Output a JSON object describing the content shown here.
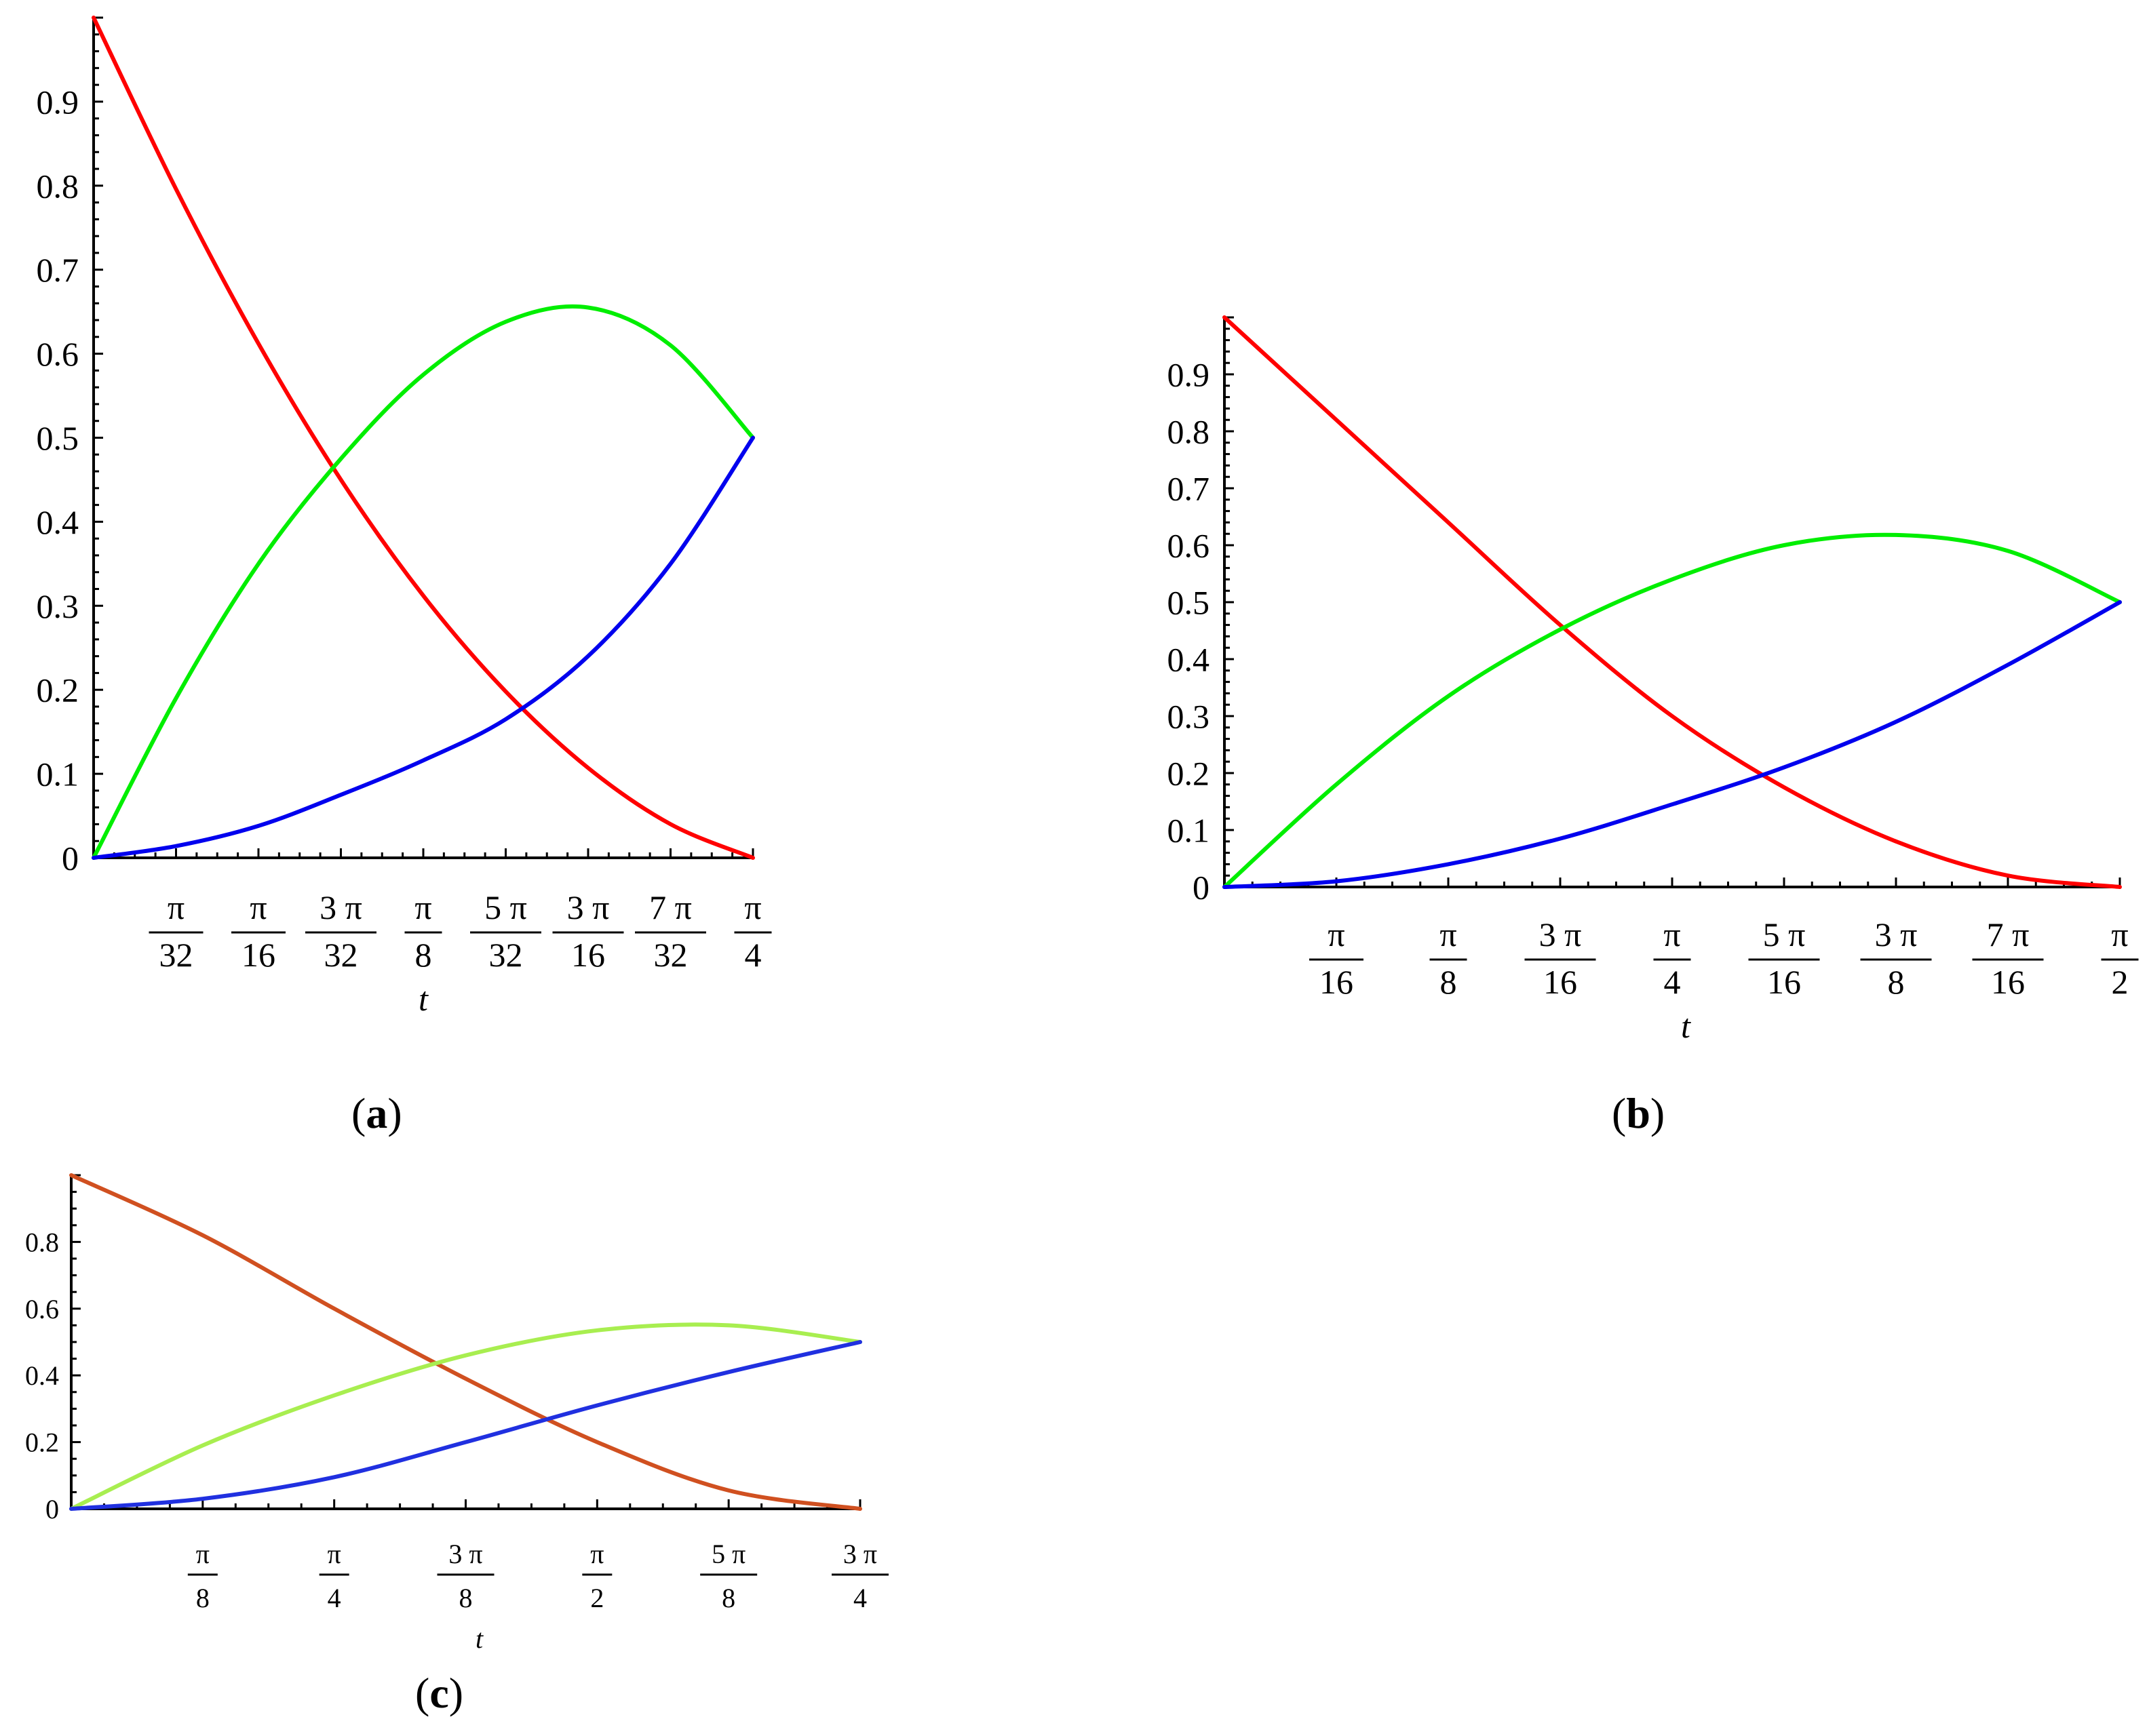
{
  "chart_data": [
    {
      "type": "line",
      "panel_label": "a",
      "xlabel": "t",
      "ylim": [
        0,
        1
      ],
      "xlim_pi": [
        0,
        0.25
      ],
      "y_ticks": [
        "0",
        "0.1",
        "0.2",
        "0.3",
        "0.4",
        "0.5",
        "0.6",
        "0.7",
        "0.8",
        "0.9"
      ],
      "y_tick_values": [
        0,
        0.1,
        0.2,
        0.3,
        0.4,
        0.5,
        0.6,
        0.7,
        0.8,
        0.9
      ],
      "x_ticks": [
        {
          "num": "π",
          "den": "32",
          "value_pi": 0.03125
        },
        {
          "num": "π",
          "den": "16",
          "value_pi": 0.0625
        },
        {
          "num": "3 π",
          "den": "32",
          "value_pi": 0.09375
        },
        {
          "num": "π",
          "den": "8",
          "value_pi": 0.125
        },
        {
          "num": "5 π",
          "den": "32",
          "value_pi": 0.15625
        },
        {
          "num": "3 π",
          "den": "16",
          "value_pi": 0.1875
        },
        {
          "num": "7 π",
          "den": "32",
          "value_pi": 0.21875
        },
        {
          "num": "π",
          "den": "4",
          "value_pi": 0.25
        }
      ],
      "x_pi": [
        0,
        0.03125,
        0.0625,
        0.09375,
        0.125,
        0.15625,
        0.1875,
        0.21875,
        0.25
      ],
      "series": [
        {
          "color": "#ff0000",
          "values": [
            1.0,
            0.796,
            0.612,
            0.45,
            0.312,
            0.198,
            0.107,
            0.04,
            0.0
          ]
        },
        {
          "color": "#00ee00",
          "values": [
            0.0,
            0.19,
            0.35,
            0.475,
            0.575,
            0.638,
            0.655,
            0.61,
            0.5
          ]
        },
        {
          "color": "#0000ee",
          "values": [
            0.0,
            0.014,
            0.038,
            0.075,
            0.116,
            0.165,
            0.24,
            0.35,
            0.5
          ]
        }
      ]
    },
    {
      "type": "line",
      "panel_label": "b",
      "xlabel": "t",
      "ylim": [
        0,
        1
      ],
      "xlim_pi": [
        0,
        0.5
      ],
      "y_ticks": [
        "0",
        "0.1",
        "0.2",
        "0.3",
        "0.4",
        "0.5",
        "0.6",
        "0.7",
        "0.8",
        "0.9"
      ],
      "y_tick_values": [
        0,
        0.1,
        0.2,
        0.3,
        0.4,
        0.5,
        0.6,
        0.7,
        0.8,
        0.9
      ],
      "x_ticks": [
        {
          "num": "π",
          "den": "16",
          "value_pi": 0.0625
        },
        {
          "num": "π",
          "den": "8",
          "value_pi": 0.125
        },
        {
          "num": "3 π",
          "den": "16",
          "value_pi": 0.1875
        },
        {
          "num": "π",
          "den": "4",
          "value_pi": 0.25
        },
        {
          "num": "5 π",
          "den": "16",
          "value_pi": 0.3125
        },
        {
          "num": "3 π",
          "den": "8",
          "value_pi": 0.375
        },
        {
          "num": "7 π",
          "den": "16",
          "value_pi": 0.4375
        },
        {
          "num": "π",
          "den": "2",
          "value_pi": 0.5
        }
      ],
      "x_pi": [
        0,
        0.0625,
        0.125,
        0.1875,
        0.25,
        0.3125,
        0.375,
        0.4375,
        0.5
      ],
      "series": [
        {
          "color": "#ff0000",
          "values": [
            1.0,
            0.82,
            0.64,
            0.46,
            0.3,
            0.175,
            0.08,
            0.02,
            0.0
          ]
        },
        {
          "color": "#00ee00",
          "values": [
            0.0,
            0.18,
            0.335,
            0.452,
            0.54,
            0.6,
            0.618,
            0.59,
            0.5
          ]
        },
        {
          "color": "#0000ee",
          "values": [
            0.0,
            0.01,
            0.04,
            0.085,
            0.145,
            0.21,
            0.29,
            0.39,
            0.5
          ]
        }
      ]
    },
    {
      "type": "line",
      "panel_label": "c",
      "xlabel": "t",
      "ylim": [
        0,
        1
      ],
      "xlim_pi": [
        0,
        0.75
      ],
      "y_ticks": [
        "0",
        "0.2",
        "0.4",
        "0.6",
        "0.8"
      ],
      "y_tick_values": [
        0,
        0.2,
        0.4,
        0.6,
        0.8
      ],
      "x_ticks": [
        {
          "num": "π",
          "den": "8",
          "value_pi": 0.125
        },
        {
          "num": "π",
          "den": "4",
          "value_pi": 0.25
        },
        {
          "num": "3 π",
          "den": "8",
          "value_pi": 0.375
        },
        {
          "num": "π",
          "den": "2",
          "value_pi": 0.5
        },
        {
          "num": "5 π",
          "den": "8",
          "value_pi": 0.625
        },
        {
          "num": "3 π",
          "den": "4",
          "value_pi": 0.75
        }
      ],
      "x_pi": [
        0,
        0.125,
        0.25,
        0.375,
        0.5,
        0.625,
        0.75
      ],
      "series": [
        {
          "color": "#d05020",
          "values": [
            1.0,
            0.82,
            0.6,
            0.39,
            0.2,
            0.055,
            0.0
          ]
        },
        {
          "color": "#a8ee50",
          "values": [
            0.0,
            0.19,
            0.34,
            0.46,
            0.535,
            0.55,
            0.5
          ]
        },
        {
          "color": "#2030e0",
          "values": [
            0.0,
            0.03,
            0.095,
            0.2,
            0.31,
            0.41,
            0.5
          ]
        }
      ]
    }
  ]
}
